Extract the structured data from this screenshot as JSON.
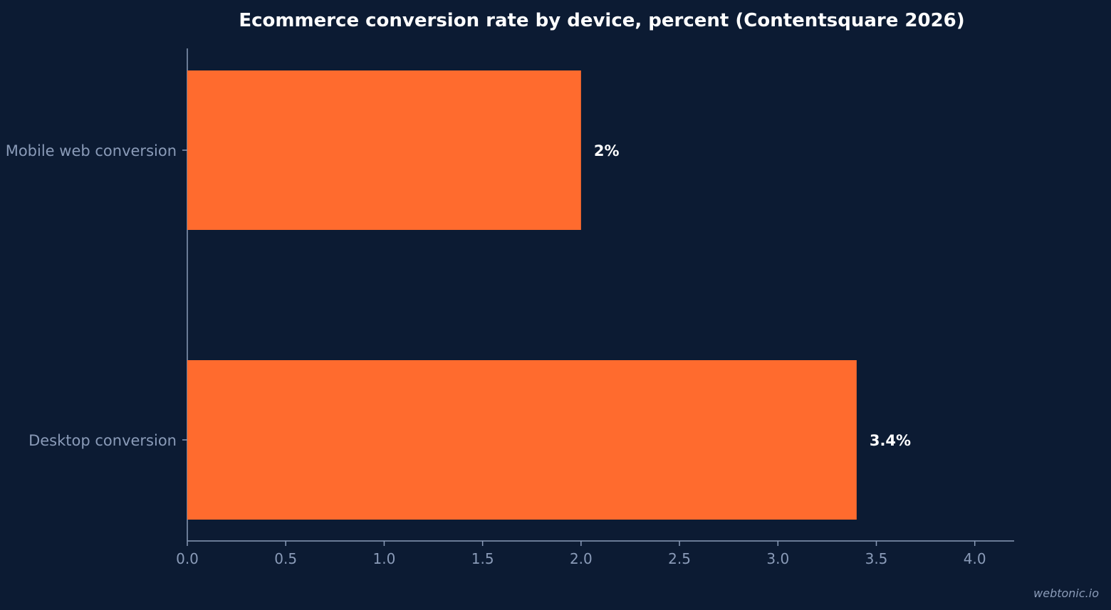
{
  "chart_data": {
    "type": "bar",
    "orientation": "horizontal",
    "title": "Ecommerce conversion rate by device, percent (Contentsquare 2026)",
    "categories": [
      "Mobile web conversion",
      "Desktop conversion"
    ],
    "values": [
      2.0,
      3.4
    ],
    "data_labels": [
      "2%",
      "3.4%"
    ],
    "xlim": [
      0,
      4.2
    ],
    "xticks": [
      0.0,
      0.5,
      1.0,
      1.5,
      2.0,
      2.5,
      3.0,
      3.5,
      4.0
    ],
    "xtick_labels": [
      "0.0",
      "0.5",
      "1.0",
      "1.5",
      "2.0",
      "2.5",
      "3.0",
      "3.5",
      "4.0"
    ],
    "xlabel": "",
    "ylabel": "",
    "grid": false,
    "bar_color": "#ff6b2e",
    "background_color": "#0c1b33"
  },
  "watermark": "webtonic.io"
}
